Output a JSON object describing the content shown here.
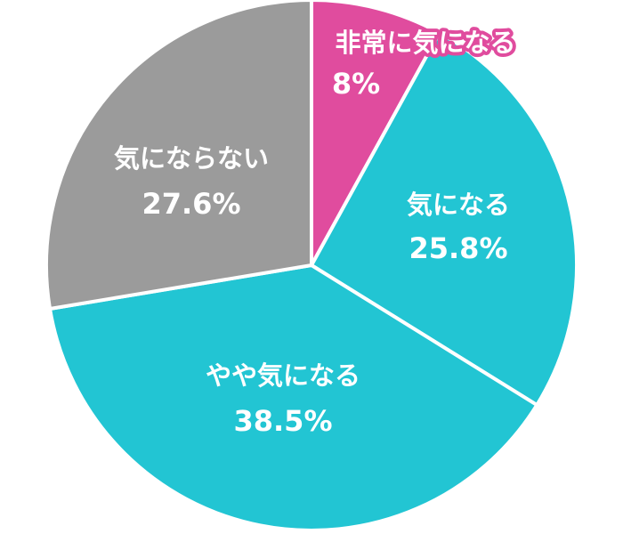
{
  "chart_data": {
    "type": "pie",
    "start": "top",
    "direction": "clockwise",
    "slices": [
      {
        "label": "非常に気になる",
        "value": 8,
        "value_label": "8%",
        "color": "#E04C9E"
      },
      {
        "label": "気になる",
        "value": 25.8,
        "value_label": "25.8%",
        "color": "#22C5D3"
      },
      {
        "label": "やや気になる",
        "value": 38.5,
        "value_label": "38.5%",
        "color": "#22C5D3"
      },
      {
        "label": "気にならない",
        "value": 27.6,
        "value_label": "27.6%",
        "color": "#9B9B9B"
      }
    ],
    "separator_color": "#FFFFFF",
    "legend": "none"
  }
}
